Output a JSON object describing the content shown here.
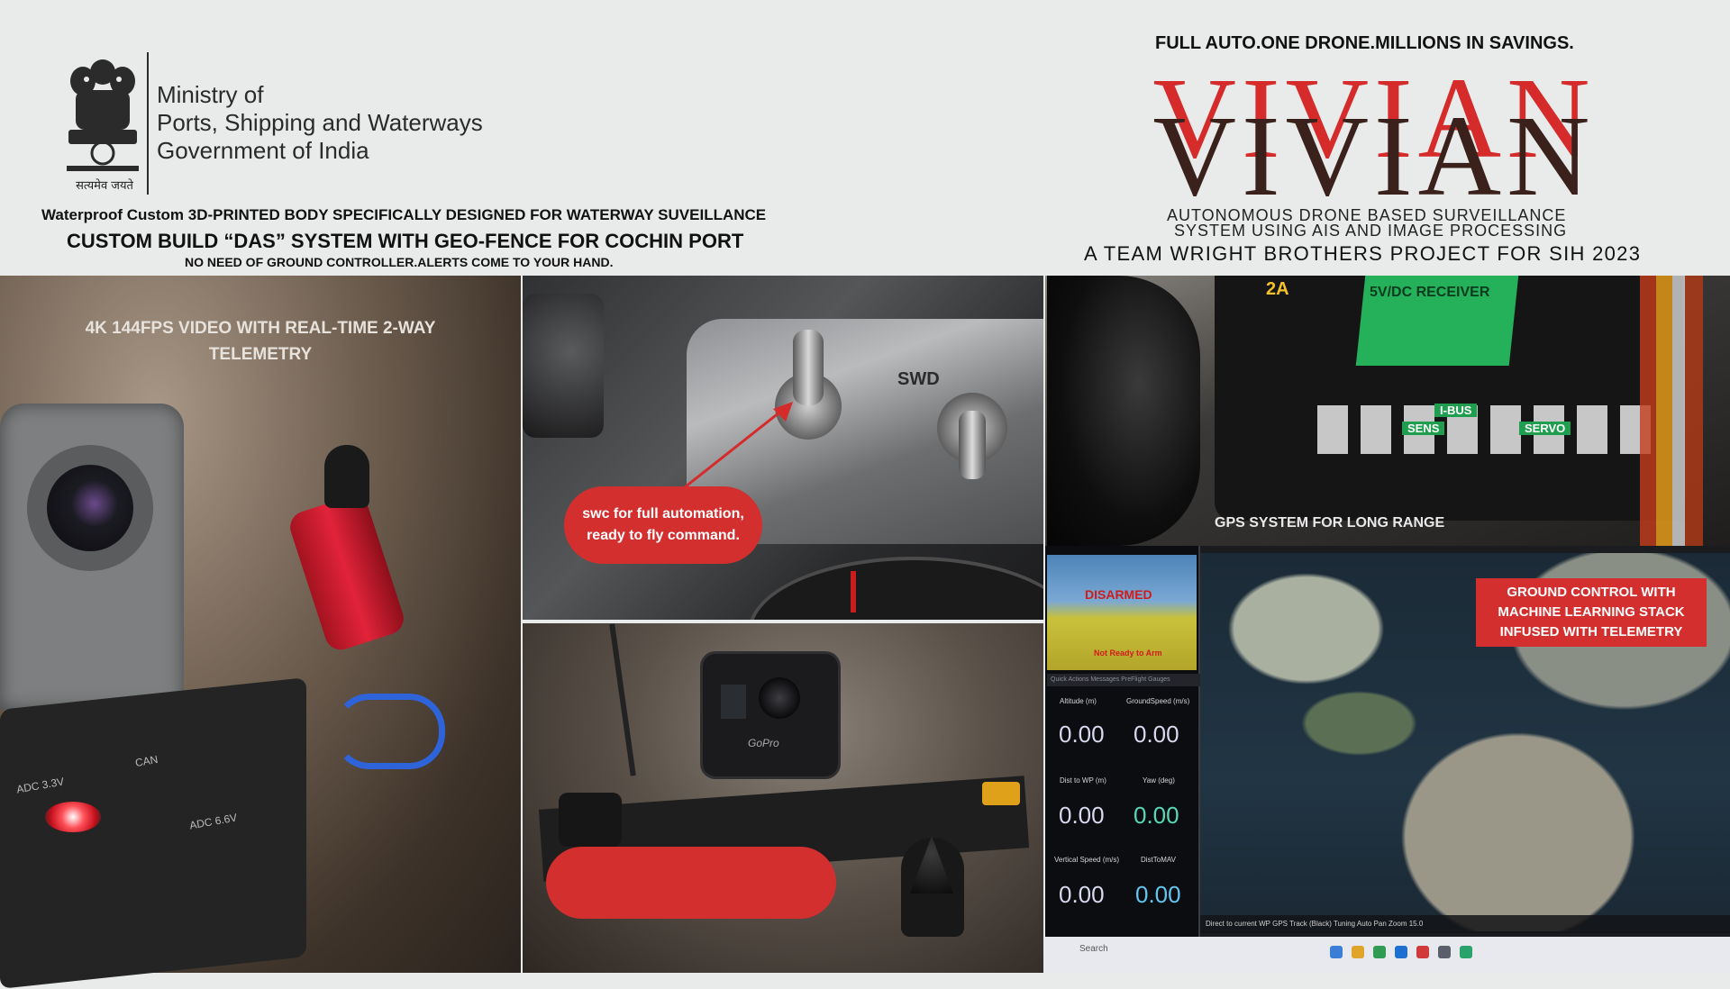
{
  "header": {
    "emblem_caption": "सत्यमेव जयते",
    "ministry_lines": [
      "Ministry of",
      "Ports, Shipping and Waterways",
      "Government of India"
    ],
    "line_waterproof": "Waterproof Custom 3D-PRINTED BODY SPECIFICALLY DESIGNED FOR WATERWAY SUVEILLANCE",
    "line_das": "CUSTOM BUILD “DAS” SYSTEM WITH GEO-FENCE FOR COCHIN PORT",
    "line_noneed": "NO NEED OF  GROUND CONTROLLER.ALERTS COME TO YOUR HAND."
  },
  "brand": {
    "tagline": "FULL AUTO.ONE DRONE.MILLIONS IN SAVINGS.",
    "name": "VIVIAN",
    "subtitle_line1": "AUTONOMOUS DRONE BASED SURVEILLANCE",
    "subtitle_line2": "SYSTEM USING AIS AND IMAGE PROCESSING",
    "team_line": "A TEAM WRIGHT BROTHERS PROJECT FOR SIH 2023",
    "colors": {
      "red": "#d52b2b",
      "dark": "#3a211c"
    }
  },
  "panels": {
    "camera": {
      "caption": "4K 144FPS VIDEO WITH REAL-TIME 2-WAY TELEMETRY",
      "board_labels": [
        "ADC 3.3V",
        "CAN",
        "ADC 6.6V"
      ]
    },
    "switch": {
      "swd_label": "SWD",
      "callout": "swc for full automation, ready to fly command."
    },
    "drone": {
      "camera_brand": "GoPro"
    },
    "gps": {
      "caption": "GPS SYSTEM FOR LONG RANGE",
      "receiver_model": "2A",
      "receiver_text": "5V/DC RECEIVER",
      "ibus_label": "I-BUS",
      "sens_label": "SENS",
      "servo_label": "SERVO"
    },
    "gcs": {
      "callout": "GROUND CONTROL WITH MACHINE LEARNING STACK INFUSED WITH TELEMETRY",
      "hud_status": "DISARMED",
      "hud_notice": "Not Ready to Arm",
      "tabs": "Quick  Actions  Messages  PreFlight  Gauges",
      "tiles": [
        {
          "label": "Altitude (m)",
          "value": "0.00"
        },
        {
          "label": "GroundSpeed (m/s)",
          "value": "0.00"
        },
        {
          "label": "Dist to WP (m)",
          "value": "0.00"
        },
        {
          "label": "Yaw (deg)",
          "value": "0.00"
        },
        {
          "label": "Vertical Speed (m/s)",
          "value": "0.00"
        },
        {
          "label": "DistToMAV",
          "value": "0.00"
        }
      ],
      "map_bar": "Direct to current WP   GPS Track (Black)   Tuning   Auto Pan   Zoom 15.0",
      "taskbar_search": "Search",
      "tile_value_colors": [
        "#d8d8ef",
        "#d8d8ef",
        "#d8d8ef",
        "#57d9b8",
        "#d8d8ef",
        "#62c6f2"
      ]
    }
  }
}
